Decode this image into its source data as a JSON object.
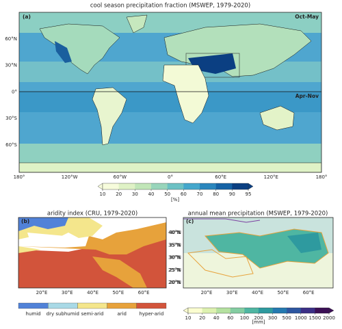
{
  "panel_a": {
    "title": "cool season precipitation fraction (MSWEP, 1979-2020)",
    "label": "(a)",
    "season_north": "Oct-May",
    "season_south": "Apr-Nov",
    "lat_labels": [
      "60°N",
      "30°N",
      "0°",
      "30°S",
      "60°S"
    ],
    "lon_labels": [
      "180°",
      "120°W",
      "60°W",
      "0°",
      "60°E",
      "120°E",
      "180°"
    ],
    "colorbar": {
      "ticks": [
        "10",
        "20",
        "30",
        "40",
        "50",
        "60",
        "70",
        "80",
        "90",
        "95"
      ],
      "colors": [
        "#f7fcdc",
        "#dff2c6",
        "#c1e6b8",
        "#98d5bb",
        "#6cc1c4",
        "#44a7cc",
        "#2a86bd",
        "#1562a5",
        "#0b3f82"
      ],
      "unit": "[%]"
    }
  },
  "panel_b": {
    "title": "aridity index (CRU, 1979-2020)",
    "label": "(b)",
    "lat_labels": [
      "40°N",
      "35°N",
      "30°N",
      "25°N",
      "20°N"
    ],
    "lon_labels": [
      "20°E",
      "30°E",
      "40°E",
      "50°E",
      "60°E"
    ],
    "legend": [
      {
        "name": "humid",
        "color": "#5182d8"
      },
      {
        "name": "dry subhumid",
        "color": "#a9d9e6"
      },
      {
        "name": "semi-arid",
        "color": "#f4e68c"
      },
      {
        "name": "arid",
        "color": "#e7a23b"
      },
      {
        "name": "hyper-arid",
        "color": "#d2543b"
      }
    ]
  },
  "panel_c": {
    "title": "annual mean precipitation (MSWEP, 1979-2020)",
    "label": "(c)",
    "lat_labels": [
      "40°N",
      "35°N",
      "30°N",
      "25°N",
      "20°N"
    ],
    "lon_labels": [
      "20°E",
      "30°E",
      "40°E",
      "50°E",
      "60°E"
    ],
    "colorbar": {
      "ticks": [
        "10",
        "20",
        "40",
        "60",
        "100",
        "200",
        "300",
        "500",
        "1000",
        "1500",
        "2000"
      ],
      "colors": [
        "#fbfdd0",
        "#ddf1b0",
        "#b5e1a0",
        "#84cda2",
        "#4fb6a2",
        "#2e9a9f",
        "#2479b0",
        "#2d56a0",
        "#3b2f86",
        "#3b0f55"
      ],
      "unit": "[mm]"
    }
  }
}
